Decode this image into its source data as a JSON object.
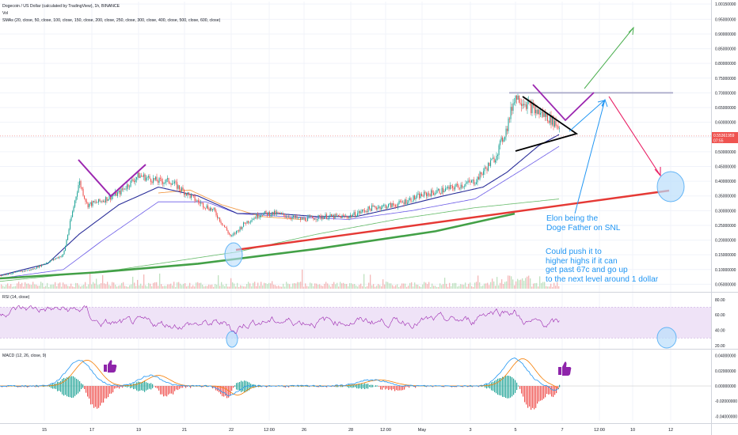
{
  "header": {
    "title": "Dogecoin / US Dollar (calculated by TradingView), 1h, BINANCE",
    "vol_label": "Vol",
    "sma_label": "SMAs (20, close, 50, close, 100, close, 150, close, 200, close, 250, close, 300, close, 400, close, 500, close, 600, close)"
  },
  "price_badge": {
    "value": "0.55361959",
    "countdown": "07:55"
  },
  "annotations": {
    "elon_note": [
      "Elon being the",
      "Doge Father on SNL"
    ],
    "push_note": [
      "Could push it to",
      "higher highs if it can",
      "get past 67c and go up",
      "to the next level around 1 dollar"
    ]
  },
  "chart_data": [
    {
      "type": "line",
      "name": "price",
      "y_axis_labels": [
        "1.00150000",
        "0.95000000",
        "0.90000000",
        "0.85000000",
        "0.80000000",
        "0.75000000",
        "0.70000000",
        "0.65000000",
        "0.60000000",
        "0.55000000",
        "0.50000000",
        "0.45000000",
        "0.40000000",
        "0.35000000",
        "0.30000000",
        "0.25000000",
        "0.20000000",
        "0.15000000",
        "0.10000000",
        "0.05000000"
      ],
      "y_axis_values": [
        1.0015,
        0.95,
        0.9,
        0.85,
        0.8,
        0.75,
        0.7,
        0.65,
        0.6,
        0.55,
        0.5,
        0.45,
        0.4,
        0.35,
        0.3,
        0.25,
        0.2,
        0.15,
        0.1,
        0.05
      ],
      "ylim": [
        0.035,
        1.01
      ],
      "x_axis_labels": [
        "15",
        "17",
        "19",
        "21",
        "22",
        "12:00",
        "26",
        "28",
        "12:00",
        "May",
        "3",
        "5",
        "7",
        "12:00",
        "10",
        "12"
      ],
      "price_anchors": [
        [
          0,
          0.08
        ],
        [
          40,
          0.1
        ],
        [
          80,
          0.15
        ],
        [
          95,
          0.34
        ],
        [
          100,
          0.4
        ],
        [
          110,
          0.32
        ],
        [
          125,
          0.33
        ],
        [
          150,
          0.36
        ],
        [
          175,
          0.42
        ],
        [
          200,
          0.4
        ],
        [
          215,
          0.4
        ],
        [
          230,
          0.37
        ],
        [
          250,
          0.33
        ],
        [
          270,
          0.3
        ],
        [
          292,
          0.21
        ],
        [
          310,
          0.26
        ],
        [
          330,
          0.29
        ],
        [
          350,
          0.29
        ],
        [
          380,
          0.27
        ],
        [
          410,
          0.28
        ],
        [
          440,
          0.28
        ],
        [
          470,
          0.31
        ],
        [
          500,
          0.32
        ],
        [
          530,
          0.35
        ],
        [
          560,
          0.37
        ],
        [
          600,
          0.4
        ],
        [
          625,
          0.48
        ],
        [
          640,
          0.58
        ],
        [
          650,
          0.69
        ],
        [
          662,
          0.67
        ],
        [
          675,
          0.64
        ],
        [
          690,
          0.62
        ],
        [
          700,
          0.6
        ],
        [
          707,
          0.58
        ]
      ],
      "sma_fast_anchors": [
        [
          0,
          0.08
        ],
        [
          60,
          0.12
        ],
        [
          100,
          0.22
        ],
        [
          150,
          0.32
        ],
        [
          200,
          0.38
        ],
        [
          250,
          0.35
        ],
        [
          300,
          0.29
        ],
        [
          350,
          0.29
        ],
        [
          400,
          0.28
        ],
        [
          450,
          0.28
        ],
        [
          500,
          0.31
        ],
        [
          560,
          0.35
        ],
        [
          610,
          0.38
        ],
        [
          640,
          0.43
        ],
        [
          680,
          0.52
        ],
        [
          707,
          0.56
        ]
      ],
      "sma_mid_anchors": [
        [
          0,
          0.07
        ],
        [
          80,
          0.1
        ],
        [
          130,
          0.2
        ],
        [
          200,
          0.33
        ],
        [
          260,
          0.33
        ],
        [
          300,
          0.29
        ],
        [
          360,
          0.28
        ],
        [
          440,
          0.27
        ],
        [
          520,
          0.3
        ],
        [
          600,
          0.34
        ],
        [
          660,
          0.44
        ],
        [
          707,
          0.52
        ]
      ],
      "sma_orange_anchors": [
        [
          200,
          0.36
        ],
        [
          240,
          0.37
        ],
        [
          280,
          0.32
        ],
        [
          330,
          0.28
        ],
        [
          380,
          0.27
        ]
      ],
      "sma_slow_anchors": [
        [
          0,
          0.06
        ],
        [
          150,
          0.1
        ],
        [
          300,
          0.16
        ],
        [
          400,
          0.22
        ],
        [
          500,
          0.27
        ],
        [
          600,
          0.31
        ],
        [
          707,
          0.34
        ]
      ],
      "trend_red": [
        [
          298,
          0.167
        ],
        [
          845,
          0.368
        ]
      ],
      "trend_green": [
        [
          0,
          0.07
        ],
        [
          120,
          0.09
        ],
        [
          250,
          0.12
        ],
        [
          400,
          0.17
        ],
        [
          550,
          0.23
        ],
        [
          650,
          0.29
        ]
      ],
      "resistance": [
        [
          643,
          0.7
        ],
        [
          850,
          0.7
        ]
      ]
    },
    {
      "type": "line",
      "name": "RSI (14, close)",
      "y_axis_labels": [
        "80.00",
        "60.00",
        "40.00",
        "20.00"
      ],
      "y_axis_values": [
        80,
        60,
        40,
        20
      ],
      "ylim": [
        17,
        87
      ],
      "upper_band": 70,
      "lower_band": 30
    },
    {
      "type": "line",
      "name": "MACD (12, 26, close, 9)",
      "y_axis_labels": [
        "0.04000000",
        "0.02000000",
        "0.00000000",
        "-0.02000000",
        "-0.04000000"
      ],
      "y_axis_values": [
        0.04,
        0.02,
        0.0,
        -0.02,
        -0.04
      ],
      "ylim": [
        -0.046,
        0.046
      ]
    }
  ],
  "colors": {
    "price": "#4caf50",
    "sma_fast": "#2a2e99",
    "sma_mid": "#6c5ce7",
    "sma_orange": "#f29c4a",
    "trend_red": "#e53935",
    "trend_green": "#43a047",
    "resistance": "#a8a8c8",
    "note_blue": "#2196f3",
    "purple": "#9c27b0",
    "rsi_band": "#efe3f7",
    "rsi_line": "#9c27b0",
    "macd_line": "#2196f3",
    "signal_line": "#f57c00",
    "price_badge": "#ef5350"
  }
}
